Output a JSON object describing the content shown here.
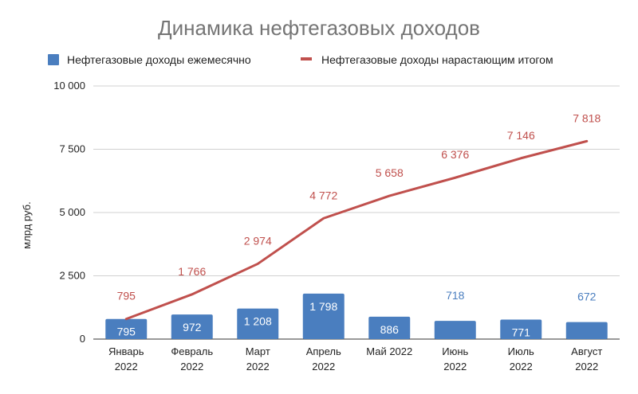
{
  "chart_data": {
    "type": "bar",
    "title": "Динамика нефтегазовых доходов",
    "xlabel": "",
    "ylabel": "млрд руб.",
    "ylim": [
      0,
      10000
    ],
    "yticks": [
      0,
      2500,
      5000,
      7500,
      10000
    ],
    "ytick_labels": [
      "0",
      "2 500",
      "5 000",
      "7 500",
      "10 000"
    ],
    "grid": true,
    "legend_position": "top",
    "categories": [
      [
        "Январь",
        "2022"
      ],
      [
        "Февраль",
        "2022"
      ],
      [
        "Март",
        "2022"
      ],
      [
        "Апрель",
        "2022"
      ],
      [
        "Май 2022"
      ],
      [
        "Июнь",
        "2022"
      ],
      [
        "Июль",
        "2022"
      ],
      [
        "Август",
        "2022"
      ]
    ],
    "series": [
      {
        "name": "Нефтегазовые доходы ежемесячно",
        "type": "bar",
        "color": "#4a7ebf",
        "values": [
          795,
          972,
          1208,
          1798,
          886,
          718,
          771,
          672
        ],
        "labels": [
          "795",
          "972",
          "1 208",
          "1 798",
          "886",
          "718",
          "771",
          "672"
        ],
        "label_inside": [
          true,
          true,
          true,
          true,
          true,
          false,
          true,
          false
        ]
      },
      {
        "name": "Нефтегазовые доходы нарастающим итогом",
        "type": "line",
        "color": "#c0504d",
        "values": [
          795,
          1766,
          2974,
          4772,
          5658,
          6376,
          7146,
          7818
        ],
        "labels": [
          "795",
          "1 766",
          "2 974",
          "4 772",
          "5 658",
          "6 376",
          "7 146",
          "7 818"
        ]
      }
    ]
  }
}
